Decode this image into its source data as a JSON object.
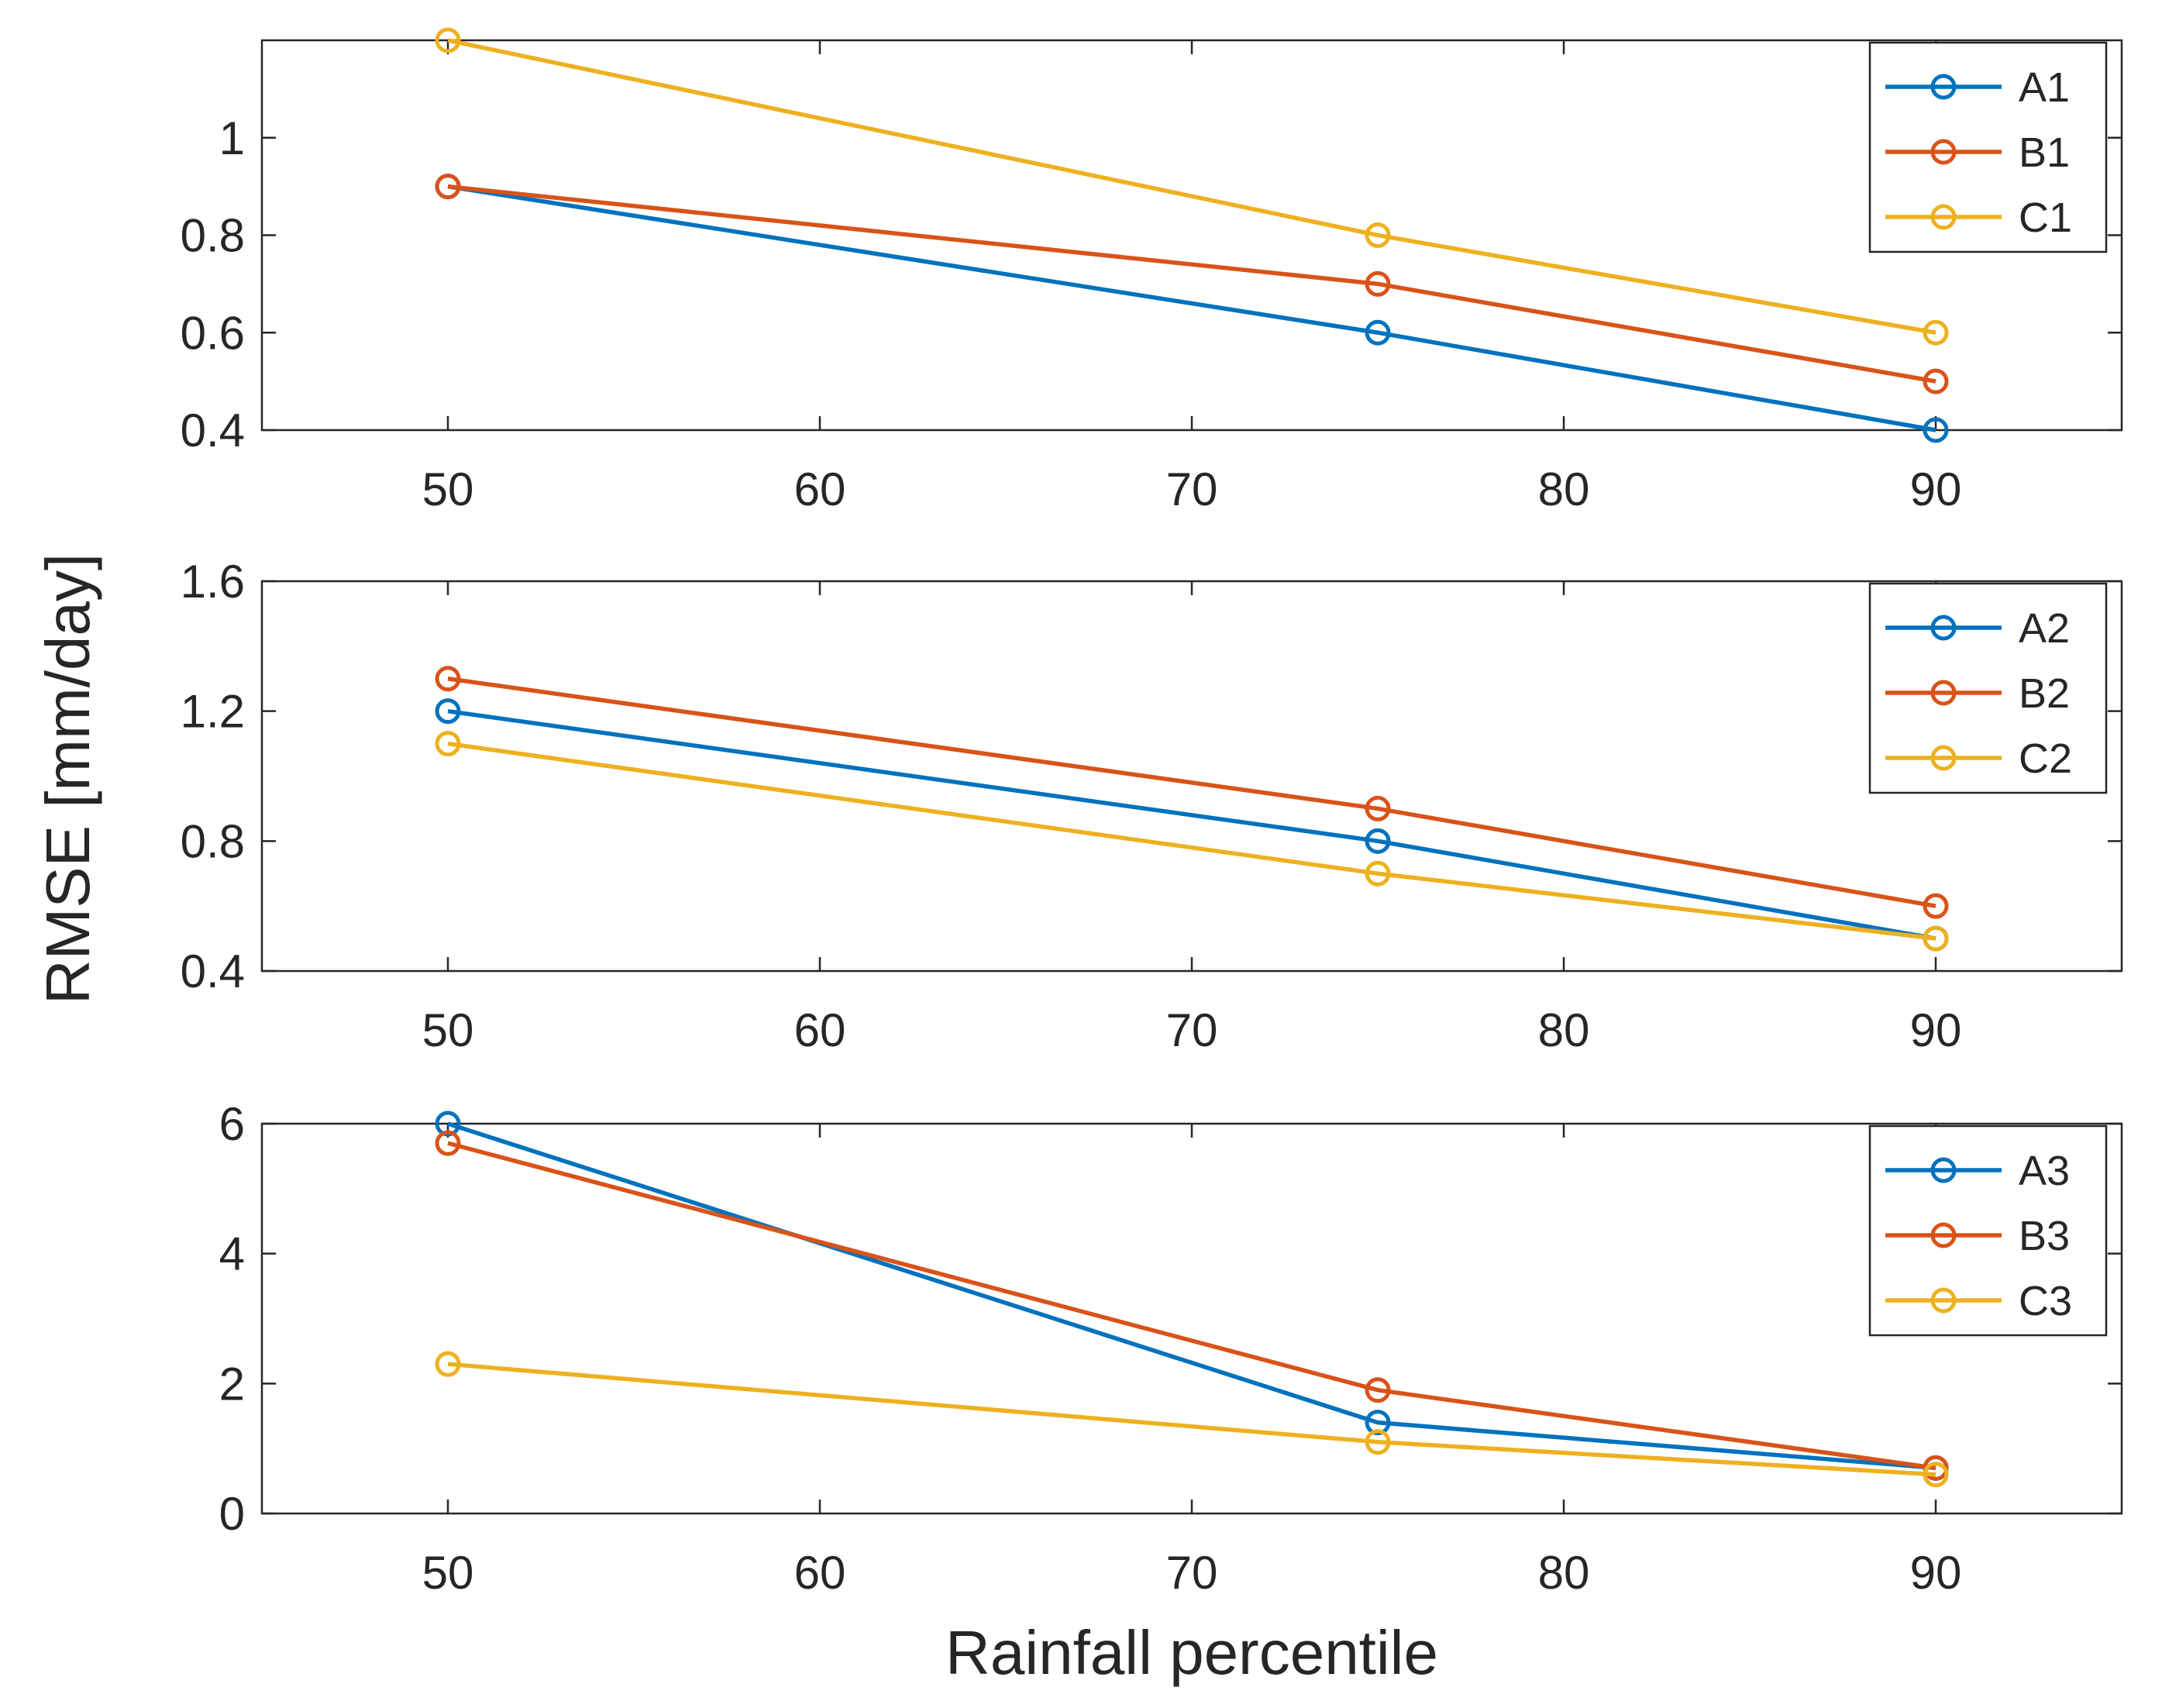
{
  "chart_data": {
    "type": "line",
    "ylabel": "RMSE [mm/day]",
    "xlabel": "Rainfall percentile",
    "colors": {
      "A": "#0072BD",
      "B": "#D95319",
      "C": "#EDB120"
    },
    "legend_position": "top-right",
    "grid": true,
    "panels": [
      {
        "xlim": [
          45,
          95
        ],
        "ylim": [
          0.4,
          1.2
        ],
        "xticks": [
          50,
          60,
          70,
          80,
          90
        ],
        "yticks": [
          0.4,
          0.6,
          0.8,
          1.0
        ],
        "ytick_labels": [
          "0.4",
          "0.6",
          "0.8",
          "1"
        ],
        "x": [
          50,
          75,
          90
        ],
        "series": [
          {
            "name": "A1",
            "color": "#0072BD",
            "values": [
              0.9,
              0.6,
              0.4
            ]
          },
          {
            "name": "B1",
            "color": "#D95319",
            "values": [
              0.9,
              0.7,
              0.5
            ]
          },
          {
            "name": "C1",
            "color": "#EDB120",
            "values": [
              1.2,
              0.8,
              0.6
            ]
          }
        ]
      },
      {
        "xlim": [
          45,
          95
        ],
        "ylim": [
          0.4,
          1.6
        ],
        "xticks": [
          50,
          60,
          70,
          80,
          90
        ],
        "yticks": [
          0.4,
          0.8,
          1.2,
          1.6
        ],
        "ytick_labels": [
          "0.4",
          "0.8",
          "1.2",
          "1.6"
        ],
        "x": [
          50,
          75,
          90
        ],
        "series": [
          {
            "name": "A2",
            "color": "#0072BD",
            "values": [
              1.2,
              0.8,
              0.5
            ]
          },
          {
            "name": "B2",
            "color": "#D95319",
            "values": [
              1.3,
              0.9,
              0.6
            ]
          },
          {
            "name": "C2",
            "color": "#EDB120",
            "values": [
              1.1,
              0.7,
              0.5
            ]
          }
        ]
      },
      {
        "xlim": [
          45,
          95
        ],
        "ylim": [
          0,
          6
        ],
        "xticks": [
          50,
          60,
          70,
          80,
          90
        ],
        "yticks": [
          0,
          2,
          4,
          6
        ],
        "ytick_labels": [
          "0",
          "2",
          "4",
          "6"
        ],
        "x": [
          50,
          75,
          90
        ],
        "series": [
          {
            "name": "A3",
            "color": "#0072BD",
            "values": [
              6.0,
              1.4,
              0.7
            ]
          },
          {
            "name": "B3",
            "color": "#D95319",
            "values": [
              5.7,
              1.9,
              0.7
            ]
          },
          {
            "name": "C3",
            "color": "#EDB120",
            "values": [
              2.3,
              1.1,
              0.6
            ]
          }
        ]
      }
    ]
  }
}
